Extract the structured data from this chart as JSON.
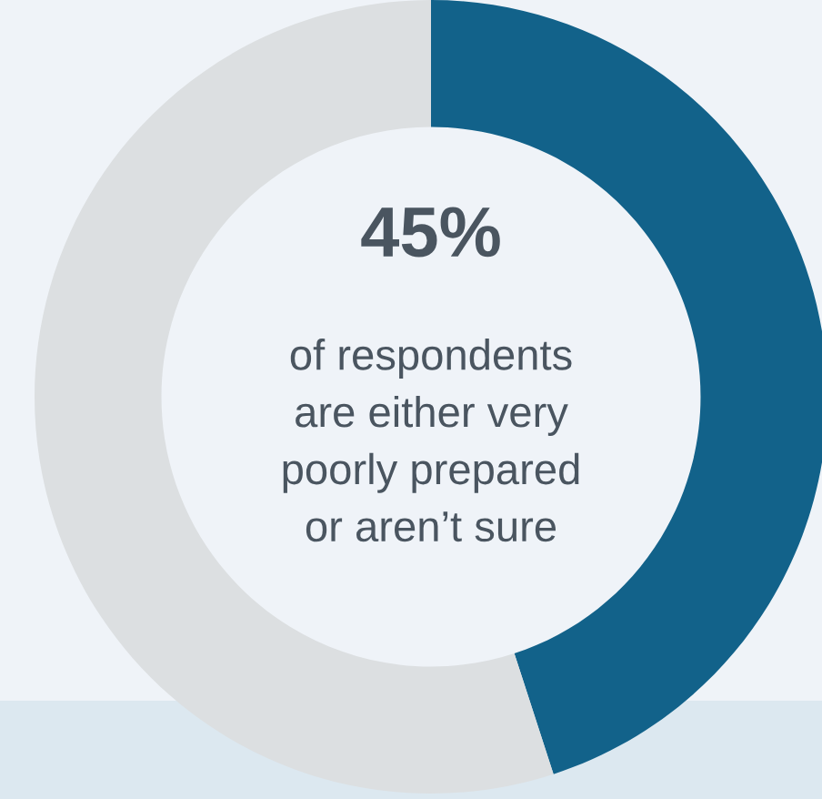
{
  "chart_data": {
    "type": "donut",
    "title": "45%",
    "subtitle": "of respondents\nare either very\npoorly prepared\nor aren’t sure",
    "categories": [
      null,
      null
    ],
    "values": [
      45,
      55
    ],
    "colors": [
      "#12628a",
      "#dcdfe1"
    ]
  }
}
